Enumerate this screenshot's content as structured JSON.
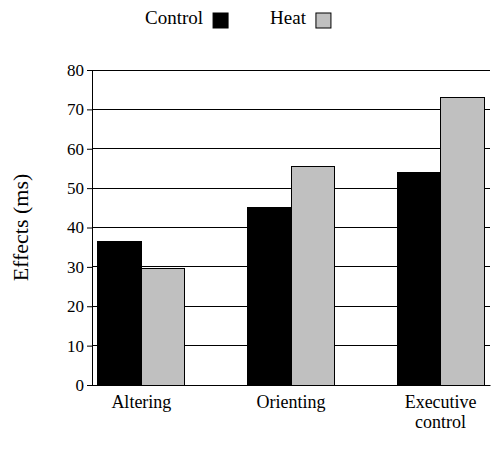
{
  "chart_data": {
    "type": "bar",
    "categories": [
      "Altering",
      "Orienting",
      "Executive control"
    ],
    "series": [
      {
        "name": "Control",
        "color": "#000000",
        "values": [
          36.5,
          45,
          54
        ]
      },
      {
        "name": "Heat",
        "color": "#c0c0c0",
        "values": [
          29.5,
          55.5,
          73
        ]
      }
    ],
    "y_label": "Effects (ms)",
    "ylim": [
      0,
      80
    ],
    "yticks": [
      0,
      10,
      20,
      30,
      40,
      50,
      60,
      70,
      80
    ],
    "grid": true,
    "legend": "top"
  }
}
